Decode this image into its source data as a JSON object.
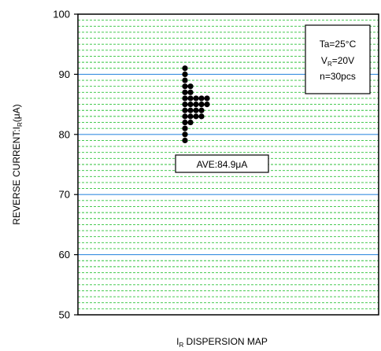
{
  "chart_data": {
    "type": "scatter",
    "title": "",
    "xlabel": {
      "main": "I",
      "sub": "R",
      "rest": " DISPERSION MAP"
    },
    "ylabel": {
      "main": "REVERSE CURRENT:I",
      "sub": "R",
      "rest": "(μA)"
    },
    "ylim": [
      50,
      100
    ],
    "yticks": [
      "50",
      "60",
      "70",
      "80",
      "90",
      "100"
    ],
    "major_grid_color": "#3a8fe0",
    "minor_grid_color": "#2fc23a",
    "minor_grid_step": 1,
    "legend_box": {
      "line1": "Ta=25°C",
      "line2": {
        "main": "V",
        "sub": "R",
        "rest": "=20V"
      },
      "line3": "n=30pcs"
    },
    "average_label": "AVE:84.9μA",
    "points": [
      {
        "col": 0,
        "y": 91
      },
      {
        "col": 0,
        "y": 90
      },
      {
        "col": 0,
        "y": 89
      },
      {
        "col": 0,
        "y": 88
      },
      {
        "col": 0,
        "y": 87
      },
      {
        "col": 0,
        "y": 86
      },
      {
        "col": 0,
        "y": 85
      },
      {
        "col": 0,
        "y": 84
      },
      {
        "col": 0,
        "y": 83
      },
      {
        "col": 0,
        "y": 82
      },
      {
        "col": 0,
        "y": 81
      },
      {
        "col": 0,
        "y": 80
      },
      {
        "col": 0,
        "y": 79
      },
      {
        "col": 1,
        "y": 88
      },
      {
        "col": 1,
        "y": 87
      },
      {
        "col": 1,
        "y": 86
      },
      {
        "col": 1,
        "y": 85
      },
      {
        "col": 1,
        "y": 84
      },
      {
        "col": 1,
        "y": 83
      },
      {
        "col": 1,
        "y": 82
      },
      {
        "col": 2,
        "y": 86
      },
      {
        "col": 2,
        "y": 85
      },
      {
        "col": 2,
        "y": 84
      },
      {
        "col": 2,
        "y": 83
      },
      {
        "col": 3,
        "y": 86
      },
      {
        "col": 3,
        "y": 85
      },
      {
        "col": 3,
        "y": 84
      },
      {
        "col": 3,
        "y": 83
      },
      {
        "col": 4,
        "y": 86
      },
      {
        "col": 4,
        "y": 85
      }
    ]
  }
}
